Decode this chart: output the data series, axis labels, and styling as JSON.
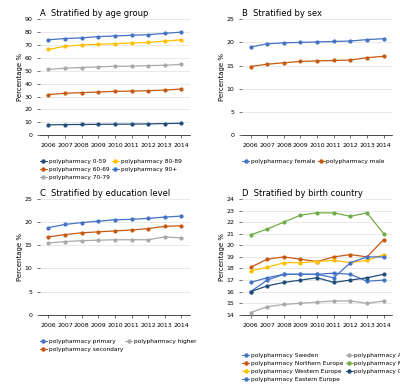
{
  "years": [
    2006,
    2007,
    2008,
    2009,
    2010,
    2011,
    2012,
    2013,
    2014
  ],
  "A_title": "A  Stratified by age group",
  "A_data": {
    "polypharmacy 0-59": [
      8.0,
      8.2,
      8.3,
      8.4,
      8.5,
      8.6,
      8.7,
      9.0,
      9.2
    ],
    "polypharmacy 60-69": [
      31.5,
      32.5,
      33.0,
      33.5,
      34.0,
      34.2,
      34.5,
      35.0,
      35.8
    ],
    "polypharmacy 70-79": [
      51.0,
      52.0,
      52.5,
      53.0,
      53.5,
      53.5,
      54.0,
      54.2,
      55.0
    ],
    "polypharmacy 80-89": [
      66.5,
      69.0,
      70.0,
      70.5,
      71.0,
      71.5,
      72.0,
      73.0,
      74.0
    ],
    "polypharmacy 90+": [
      74.0,
      75.0,
      75.5,
      76.5,
      77.0,
      77.5,
      78.0,
      79.0,
      80.0
    ]
  },
  "A_colors": {
    "polypharmacy 0-59": "#1f4e79",
    "polypharmacy 60-69": "#c55a11",
    "polypharmacy 70-79": "#a9a9a9",
    "polypharmacy 80-89": "#ffc000",
    "polypharmacy 90+": "#4472c4"
  },
  "A_ylim": [
    0,
    90
  ],
  "A_yticks": [
    0,
    10,
    20,
    30,
    40,
    50,
    60,
    70,
    80,
    90
  ],
  "B_title": "B  Stratified by sex",
  "B_data": {
    "polypharmacy female": [
      19.0,
      19.7,
      19.9,
      20.0,
      20.1,
      20.2,
      20.3,
      20.6,
      20.8
    ],
    "polypharmacy male": [
      14.8,
      15.3,
      15.6,
      15.9,
      16.0,
      16.1,
      16.2,
      16.7,
      17.0
    ]
  },
  "B_colors": {
    "polypharmacy female": "#4472c4",
    "polypharmacy male": "#c55a11"
  },
  "B_ylim": [
    0,
    25
  ],
  "B_yticks": [
    0,
    5,
    10,
    15,
    20,
    25
  ],
  "C_title": "C  Stratified by education level",
  "C_data": {
    "polypharmacy primary": [
      18.8,
      19.5,
      19.9,
      20.2,
      20.5,
      20.6,
      20.8,
      21.1,
      21.3
    ],
    "polypharmacy secondary": [
      16.8,
      17.3,
      17.7,
      17.9,
      18.1,
      18.3,
      18.6,
      19.1,
      19.2
    ],
    "polypharmacy higher": [
      15.5,
      15.8,
      16.0,
      16.1,
      16.2,
      16.2,
      16.2,
      16.8,
      16.6
    ]
  },
  "C_colors": {
    "polypharmacy primary": "#4472c4",
    "polypharmacy secondary": "#c55a11",
    "polypharmacy higher": "#a9a9a9"
  },
  "C_ylim": [
    0,
    25
  ],
  "C_yticks": [
    0,
    5,
    10,
    15,
    20,
    25
  ],
  "D_title": "D  Stratified by birth country",
  "D_data": {
    "polypharmacy Sweden": [
      16.8,
      17.2,
      17.5,
      17.5,
      17.5,
      17.6,
      17.5,
      16.9,
      17.0
    ],
    "polypharmacy Northern Europe": [
      18.1,
      18.8,
      19.0,
      18.8,
      18.6,
      19.0,
      19.2,
      19.0,
      20.5
    ],
    "polypharmacy Western Europe": [
      17.8,
      18.1,
      18.5,
      18.5,
      18.6,
      18.7,
      18.5,
      18.7,
      19.2
    ],
    "polypharmacy Eastern Europe": [
      16.0,
      17.0,
      17.5,
      17.5,
      17.5,
      17.2,
      18.5,
      19.0,
      19.0
    ],
    "polypharmacy Africa": [
      14.2,
      14.7,
      14.9,
      15.0,
      15.1,
      15.2,
      15.2,
      15.0,
      15.2
    ],
    "polypharmacy Middle East": [
      20.9,
      21.4,
      22.0,
      22.6,
      22.8,
      22.8,
      22.5,
      22.8,
      21.0
    ],
    "polypharmacy Others": [
      16.0,
      16.5,
      16.8,
      17.0,
      17.2,
      16.8,
      17.0,
      17.2,
      17.5
    ]
  },
  "D_colors": {
    "polypharmacy Sweden": "#4472c4",
    "polypharmacy Northern Europe": "#c55a11",
    "polypharmacy Western Europe": "#ffc000",
    "polypharmacy Eastern Europe": "#ffc000",
    "polypharmacy Africa": "#a9a9a9",
    "polypharmacy Middle East": "#70ad47",
    "polypharmacy Others": "#1f4e79"
  },
  "D_ylim": [
    14,
    24
  ],
  "D_yticks": [
    14,
    15,
    16,
    17,
    18,
    19,
    20,
    21,
    22,
    23,
    24
  ],
  "ylabel": "Percentage %",
  "background_color": "#ffffff",
  "grid_color": "#d9d9d9",
  "marker": "o",
  "markersize": 2.0,
  "linewidth": 0.9,
  "legend_fontsize": 4.2,
  "axis_fontsize": 5.0,
  "title_fontsize": 6.0,
  "tick_fontsize": 4.5
}
